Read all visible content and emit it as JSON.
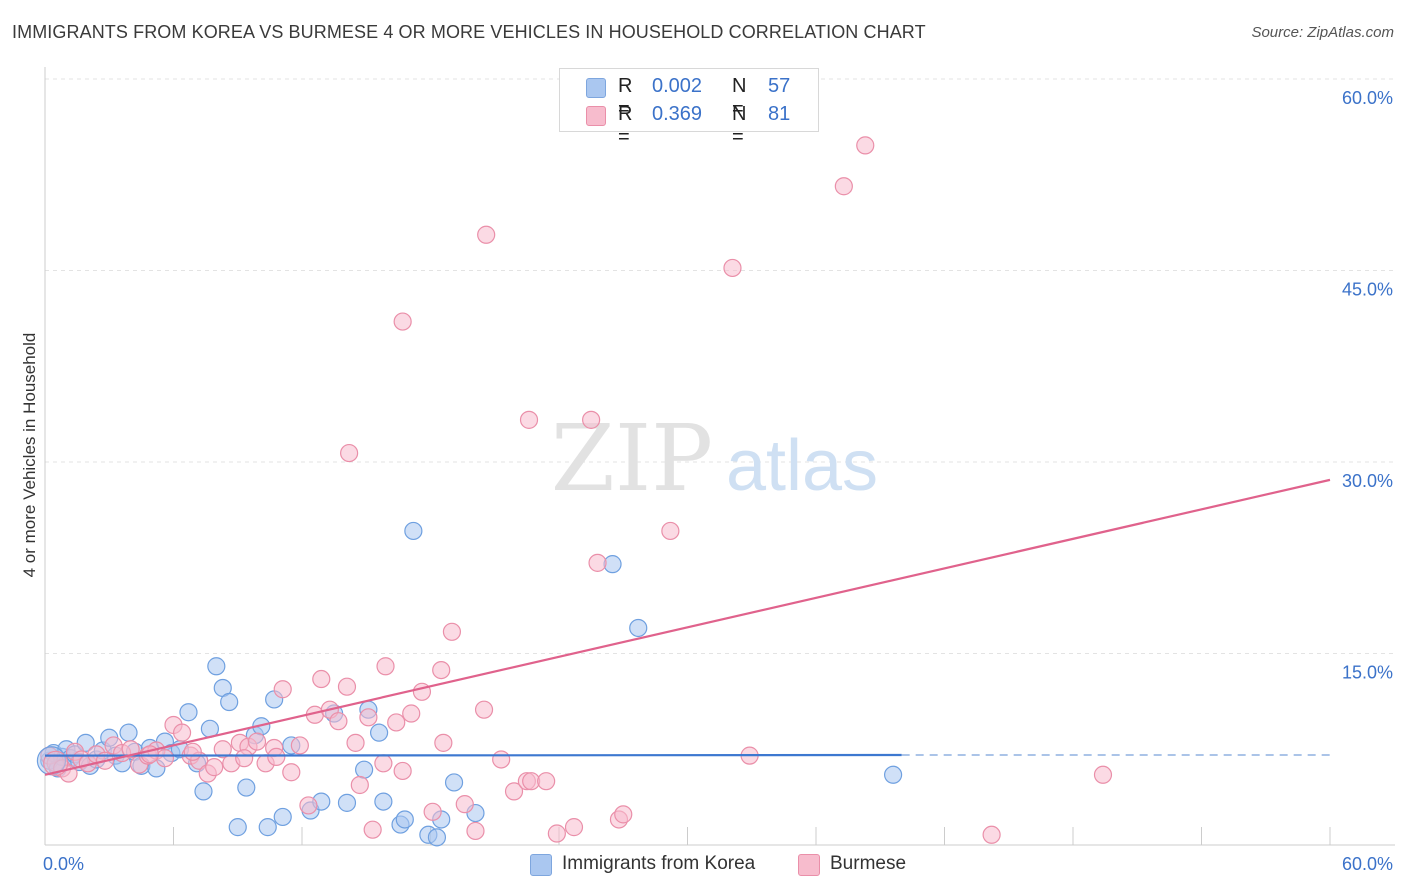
{
  "title": "IMMIGRANTS FROM KOREA VS BURMESE 4 OR MORE VEHICLES IN HOUSEHOLD CORRELATION CHART",
  "source": "Source: ZipAtlas.com",
  "watermark": {
    "zip": "ZIP",
    "atlas": "atlas"
  },
  "legend": {
    "r_label": "R =",
    "n_label": "N =",
    "rows": [
      {
        "r": "0.002",
        "n": "57",
        "color": "#aac7f0",
        "border": "#7ea6de"
      },
      {
        "r": "0.369",
        "n": "81",
        "color": "#f7bccd",
        "border": "#ea8fa9"
      }
    ]
  },
  "bottom_legend": [
    {
      "label": "Immigrants from Korea",
      "color": "#aac7f0",
      "border": "#7ea6de"
    },
    {
      "label": "Burmese",
      "color": "#f7bccd",
      "border": "#ea8fa9"
    }
  ],
  "chart_data": {
    "type": "scatter",
    "title": "IMMIGRANTS FROM KOREA VS BURMESE 4 OR MORE VEHICLES IN HOUSEHOLD CORRELATION CHART",
    "xlabel": "",
    "ylabel": "4 or more Vehicles in Household",
    "xlim": [
      0,
      60
    ],
    "ylim": [
      0,
      60
    ],
    "x_tick_labels": [
      "0.0%",
      "60.0%"
    ],
    "y_tick_values": [
      15,
      30,
      45,
      60
    ],
    "y_tick_labels": [
      "15.0%",
      "30.0%",
      "45.0%",
      "60.0%"
    ],
    "grid": true,
    "legend_position": "top-center",
    "series": [
      {
        "name": "Immigrants from Korea",
        "color": "#6fa0e0",
        "fill": "#aac7f0",
        "r": 0.002,
        "n": 57,
        "trend": {
          "x": [
            0,
            40
          ],
          "y": [
            7.0,
            7.05
          ],
          "dashed_to": 60,
          "color": "#3d78d0"
        },
        "points": [
          [
            0.2,
            6.6
          ],
          [
            0.4,
            7.2
          ],
          [
            0.6,
            6.0
          ],
          [
            0.8,
            6.9
          ],
          [
            1.0,
            7.5
          ],
          [
            1.2,
            6.8
          ],
          [
            1.4,
            7.1
          ],
          [
            1.6,
            6.5
          ],
          [
            1.9,
            8.0
          ],
          [
            2.1,
            6.2
          ],
          [
            2.4,
            6.7
          ],
          [
            2.7,
            7.4
          ],
          [
            3.0,
            8.4
          ],
          [
            3.3,
            7.0
          ],
          [
            3.6,
            6.4
          ],
          [
            3.9,
            8.8
          ],
          [
            4.2,
            7.3
          ],
          [
            4.5,
            6.2
          ],
          [
            4.9,
            7.6
          ],
          [
            5.2,
            6.0
          ],
          [
            5.6,
            8.1
          ],
          [
            5.9,
            7.2
          ],
          [
            6.3,
            7.5
          ],
          [
            6.7,
            10.4
          ],
          [
            7.1,
            6.4
          ],
          [
            7.4,
            4.2
          ],
          [
            7.7,
            9.1
          ],
          [
            8.0,
            14.0
          ],
          [
            8.3,
            12.3
          ],
          [
            8.6,
            11.2
          ],
          [
            9.0,
            1.4
          ],
          [
            9.4,
            4.5
          ],
          [
            9.8,
            8.6
          ],
          [
            10.1,
            9.3
          ],
          [
            10.4,
            1.4
          ],
          [
            10.7,
            11.4
          ],
          [
            11.1,
            2.2
          ],
          [
            11.5,
            7.8
          ],
          [
            12.4,
            2.7
          ],
          [
            12.9,
            3.4
          ],
          [
            13.5,
            10.3
          ],
          [
            14.1,
            3.3
          ],
          [
            15.1,
            10.6
          ],
          [
            14.9,
            5.9
          ],
          [
            15.6,
            8.8
          ],
          [
            15.8,
            3.4
          ],
          [
            16.6,
            1.6
          ],
          [
            16.8,
            2.0
          ],
          [
            17.2,
            24.6
          ],
          [
            17.9,
            0.8
          ],
          [
            18.3,
            0.6
          ],
          [
            18.5,
            2.0
          ],
          [
            19.1,
            4.9
          ],
          [
            20.1,
            2.5
          ],
          [
            26.5,
            22.0
          ],
          [
            27.7,
            17.0
          ],
          [
            39.6,
            5.5
          ]
        ]
      },
      {
        "name": "Burmese",
        "color": "#ea8fa9",
        "fill": "#f7bccd",
        "r": 0.369,
        "n": 81,
        "trend": {
          "x": [
            0,
            60
          ],
          "y": [
            5.5,
            28.6
          ],
          "color": "#e0628c"
        },
        "points": [
          [
            0.2,
            7.0
          ],
          [
            0.5,
            6.4
          ],
          [
            0.8,
            6.0
          ],
          [
            1.1,
            5.6
          ],
          [
            1.4,
            7.3
          ],
          [
            1.7,
            6.7
          ],
          [
            2.0,
            6.4
          ],
          [
            2.4,
            7.1
          ],
          [
            2.8,
            6.6
          ],
          [
            3.2,
            7.8
          ],
          [
            3.6,
            7.2
          ],
          [
            4.0,
            7.5
          ],
          [
            4.4,
            6.3
          ],
          [
            4.8,
            7.0
          ],
          [
            5.2,
            7.4
          ],
          [
            5.6,
            6.8
          ],
          [
            6.0,
            9.4
          ],
          [
            6.4,
            8.8
          ],
          [
            6.8,
            7.0
          ],
          [
            7.2,
            6.6
          ],
          [
            7.6,
            5.6
          ],
          [
            7.9,
            6.1
          ],
          [
            8.3,
            7.5
          ],
          [
            8.7,
            6.4
          ],
          [
            9.1,
            8.0
          ],
          [
            9.5,
            7.7
          ],
          [
            9.9,
            8.1
          ],
          [
            10.3,
            6.4
          ],
          [
            10.7,
            7.6
          ],
          [
            11.1,
            12.2
          ],
          [
            11.5,
            5.7
          ],
          [
            11.9,
            7.8
          ],
          [
            12.3,
            3.1
          ],
          [
            12.6,
            10.2
          ],
          [
            12.9,
            13.0
          ],
          [
            13.3,
            10.6
          ],
          [
            13.7,
            9.7
          ],
          [
            14.1,
            12.4
          ],
          [
            14.5,
            8.0
          ],
          [
            14.7,
            4.7
          ],
          [
            15.1,
            10.0
          ],
          [
            15.3,
            1.2
          ],
          [
            15.8,
            6.4
          ],
          [
            15.9,
            14.0
          ],
          [
            16.4,
            9.6
          ],
          [
            16.7,
            5.8
          ],
          [
            17.1,
            10.3
          ],
          [
            17.6,
            12.0
          ],
          [
            18.1,
            2.6
          ],
          [
            18.5,
            13.7
          ],
          [
            19.0,
            16.7
          ],
          [
            19.6,
            3.2
          ],
          [
            20.1,
            1.1
          ],
          [
            20.5,
            10.6
          ],
          [
            21.3,
            6.7
          ],
          [
            21.9,
            4.2
          ],
          [
            22.5,
            5.0
          ],
          [
            22.7,
            5.0
          ],
          [
            23.4,
            5.0
          ],
          [
            23.9,
            0.9
          ],
          [
            24.7,
            1.4
          ],
          [
            25.8,
            22.1
          ],
          [
            26.8,
            2.0
          ],
          [
            27.0,
            2.4
          ],
          [
            29.2,
            24.6
          ],
          [
            32.1,
            45.2
          ],
          [
            32.9,
            7.0
          ],
          [
            44.2,
            0.8
          ],
          [
            49.4,
            5.5
          ],
          [
            16.7,
            41.0
          ],
          [
            14.2,
            30.7
          ],
          [
            22.6,
            33.3
          ],
          [
            25.5,
            33.3
          ],
          [
            20.6,
            47.8
          ],
          [
            37.3,
            51.6
          ],
          [
            38.3,
            54.8
          ],
          [
            4.9,
            7.1
          ],
          [
            9.3,
            6.8
          ],
          [
            18.6,
            8.0
          ],
          [
            6.9,
            7.3
          ],
          [
            10.8,
            6.9
          ]
        ]
      }
    ]
  }
}
